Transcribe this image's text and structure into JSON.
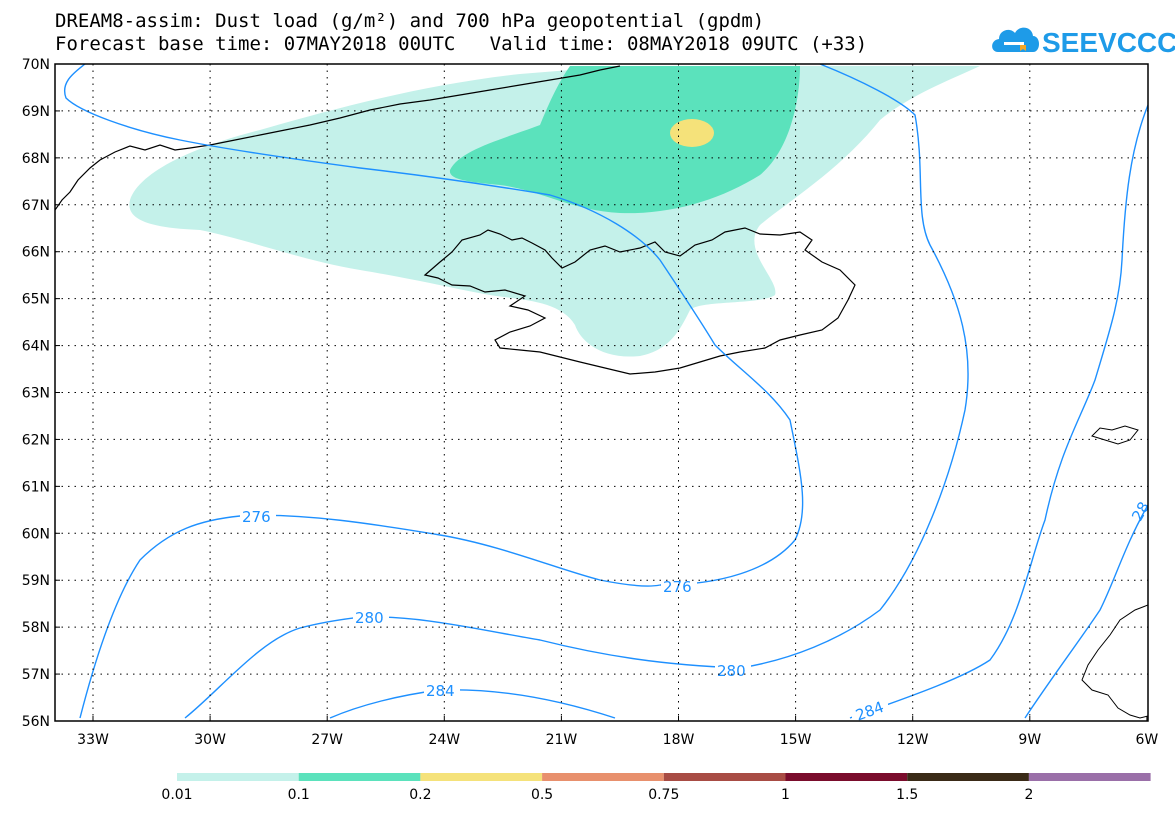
{
  "title": {
    "line1": "DREAM8-assim: Dust load (g/m²) and 700 hPa geopotential (gpdm)",
    "line2": "Forecast base time: 07MAY2018 00UTC   Valid time: 08MAY2018 09UTC (+33)"
  },
  "logo": {
    "text": "SEEVCCC",
    "icon": "cloud-logo-icon",
    "color": "#1e9be8"
  },
  "map": {
    "lat_labels": [
      "70N",
      "69N",
      "68N",
      "67N",
      "66N",
      "65N",
      "64N",
      "63N",
      "62N",
      "61N",
      "60N",
      "59N",
      "58N",
      "57N",
      "56N"
    ],
    "lon_labels": [
      "33W",
      "30W",
      "27W",
      "24W",
      "21W",
      "18W",
      "15W",
      "12W",
      "9W",
      "6W"
    ],
    "contour_color": "#1e90ff",
    "contour_labels": [
      {
        "value": "276"
      },
      {
        "value": "276"
      },
      {
        "value": "280"
      },
      {
        "value": "280"
      },
      {
        "value": "284"
      },
      {
        "value": "284"
      },
      {
        "value": "28"
      }
    ]
  },
  "colorbar": {
    "labels": [
      "0.01",
      "0.1",
      "0.2",
      "0.5",
      "0.75",
      "1",
      "1.5",
      "2"
    ],
    "colors": [
      "#c4f1ea",
      "#5be2bc",
      "#f5e27a",
      "#e8906d",
      "#a84c44",
      "#7a0c2c",
      "#3a2a17",
      "#9a6fa8"
    ]
  },
  "dust_colors": {
    "light": "#c4f1ea",
    "medium": "#5be2bc",
    "high": "#f5e27a"
  }
}
